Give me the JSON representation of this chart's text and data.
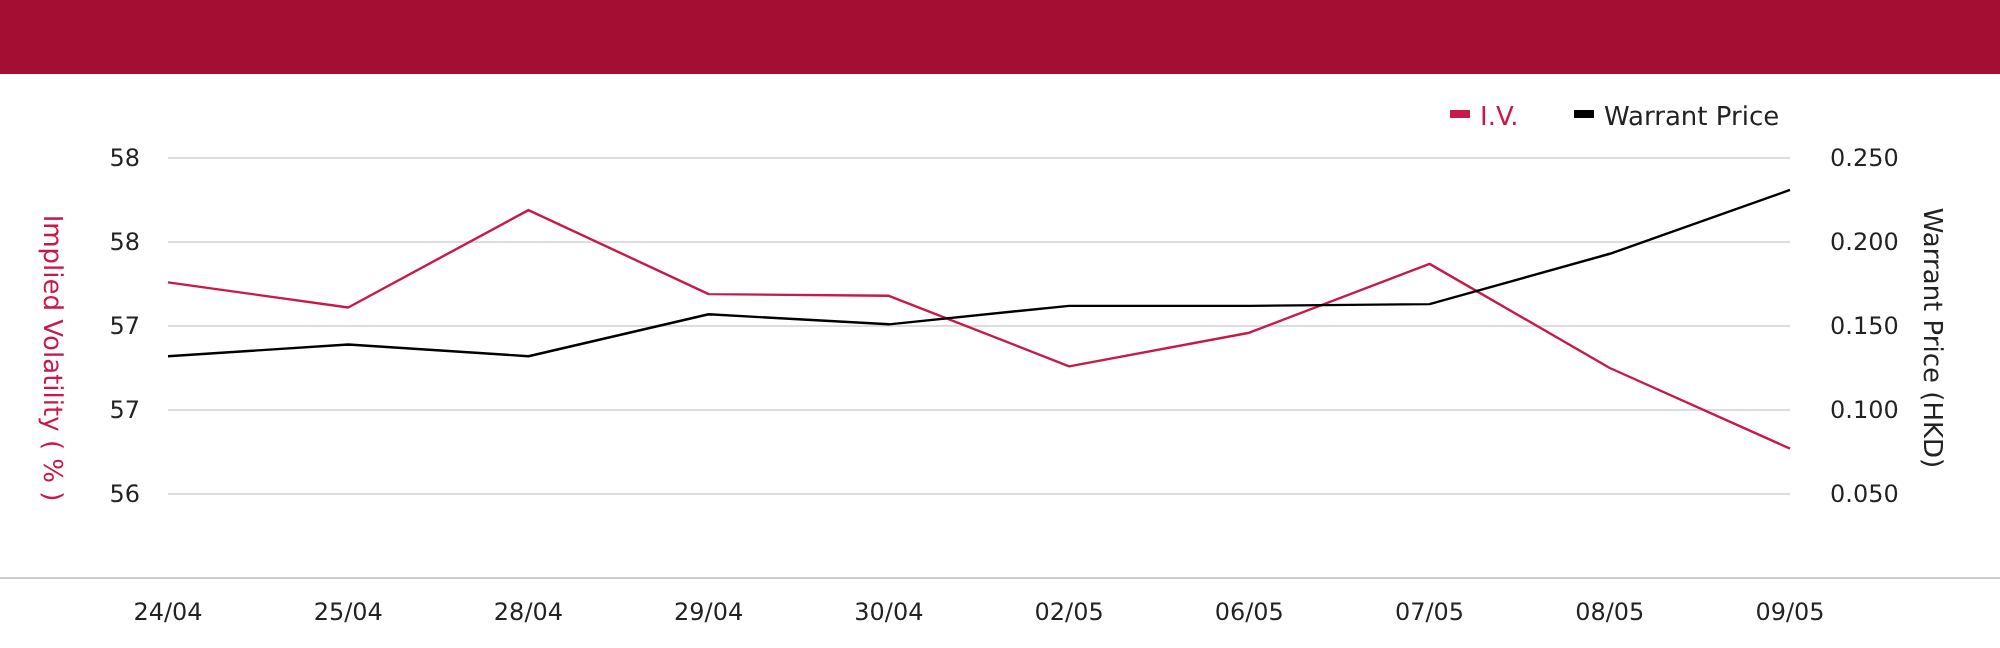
{
  "chart_data": {
    "type": "line",
    "categories": [
      "24/04",
      "25/04",
      "28/04",
      "29/04",
      "30/04",
      "02/05",
      "06/05",
      "07/05",
      "08/05",
      "09/05"
    ],
    "series": [
      {
        "name": "I.V.",
        "color": "#c8194b",
        "values": [
          57.26,
          57.11,
          57.69,
          57.19,
          57.18,
          56.76,
          56.96,
          57.37,
          56.75,
          56.27
        ]
      },
      {
        "name": "Warrant Price",
        "color": "#000000",
        "axis": "y2",
        "values": [
          0.132,
          0.139,
          0.132,
          0.157,
          0.151,
          0.162,
          0.162,
          0.163,
          0.193,
          0.231
        ]
      }
    ],
    "ylabel": "Implied Volatility ( % )",
    "y2label": "Warrant Price (HKD)",
    "ylim": [
      55.5,
      58
    ],
    "yticks": [
      {
        "value": 58,
        "label": "58"
      },
      {
        "value": 57.5,
        "label": "58"
      },
      {
        "value": 57,
        "label": "57"
      },
      {
        "value": 56.5,
        "label": "57"
      },
      {
        "value": 56,
        "label": "56"
      }
    ],
    "y2lim": [
      0,
      0.25
    ],
    "y2ticks": [
      {
        "value": 0.25,
        "label": "0.250"
      },
      {
        "value": 0.2,
        "label": "0.200"
      },
      {
        "value": 0.15,
        "label": "0.150"
      },
      {
        "value": 0.1,
        "label": "0.100"
      },
      {
        "value": 0.05,
        "label": "0.050"
      }
    ],
    "grid": "y",
    "legend": "top right",
    "marker": "none",
    "line_style": "solid"
  }
}
